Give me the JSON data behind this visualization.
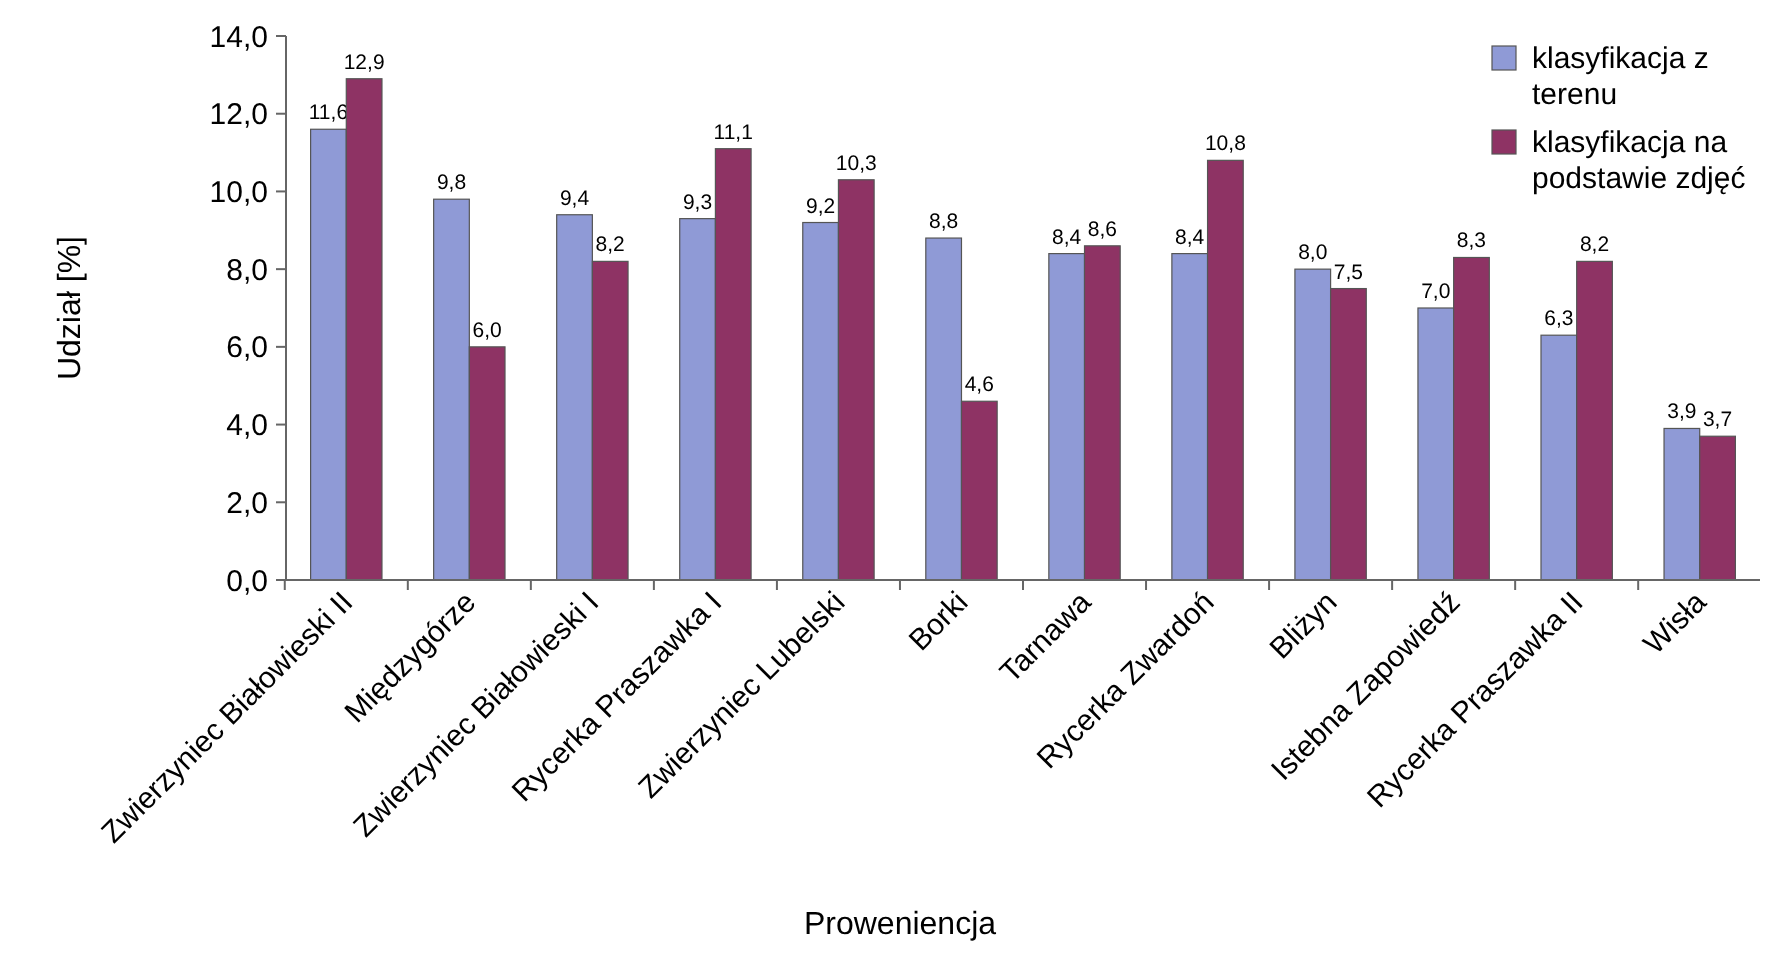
{
  "chart_data": {
    "type": "bar",
    "xlabel": "Proweniencja",
    "ylabel": "Udział [%]",
    "categories": [
      "Zwierzyniec Białowieski II",
      "Międzygórze",
      "Zwierzyniec Białowieski I",
      "Rycerka Praszawka I",
      "Zwierzyniec Lubelski",
      "Borki",
      "Tarnawa",
      "Rycerka Zwardoń",
      "Bliżyn",
      "Istebna Zapowiedź",
      "Rycerka Praszawka II",
      "Wisła"
    ],
    "series": [
      {
        "name": "klasyfikacja z terenu",
        "color": "#8f9ad6",
        "values": [
          11.6,
          9.8,
          9.4,
          9.3,
          9.2,
          8.8,
          8.4,
          8.4,
          8.0,
          7.0,
          6.3,
          3.9
        ],
        "value_labels": [
          "11,6",
          "9,8",
          "9,4",
          "9,3",
          "9,2",
          "8,8",
          "8,4",
          "8,4",
          "8,0",
          "7,0",
          "6,3",
          "3,9"
        ]
      },
      {
        "name": "klasyfikacja na podstawie zdjęć",
        "color": "#8e3364",
        "values": [
          12.9,
          6.0,
          8.2,
          11.1,
          10.3,
          4.6,
          8.6,
          10.8,
          7.5,
          8.3,
          8.2,
          3.7
        ],
        "value_labels": [
          "12,9",
          "6,0",
          "8,2",
          "11,1",
          "10,3",
          "4,6",
          "8,6",
          "10,8",
          "7,5",
          "8,3",
          "8,2",
          "3,7"
        ]
      }
    ],
    "ylim": [
      0,
      14
    ],
    "yticks": [
      {
        "value": 0,
        "label": "0,0"
      },
      {
        "value": 2,
        "label": "2,0"
      },
      {
        "value": 4,
        "label": "4,0"
      },
      {
        "value": 6,
        "label": "6,0"
      },
      {
        "value": 8,
        "label": "8,0"
      },
      {
        "value": 10,
        "label": "10,0"
      },
      {
        "value": 12,
        "label": "12,0"
      },
      {
        "value": 14,
        "label": "14,0"
      }
    ],
    "grid": false,
    "legend": "top right"
  }
}
